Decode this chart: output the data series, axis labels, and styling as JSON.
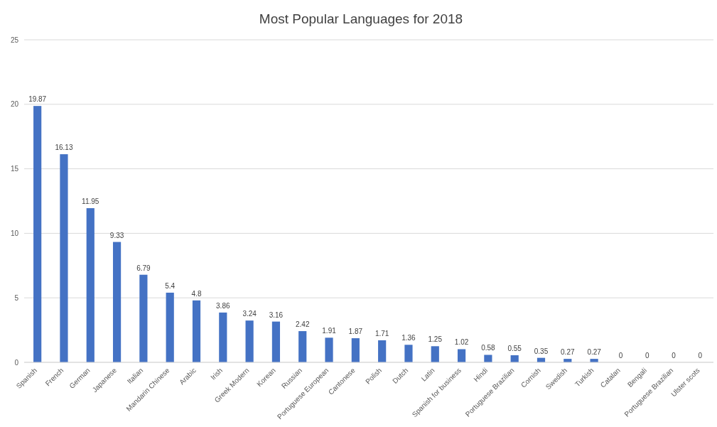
{
  "chart_data": {
    "type": "bar",
    "title": "Most Popular Languages for 2018",
    "categories": [
      "Spanish",
      "French",
      "German",
      "Japanese",
      "Italian",
      "Mandarin Chinese",
      "Arabic",
      "Irish",
      "Greek Modern",
      "Korean",
      "Russian",
      "Portuguese European",
      "Cantonese",
      "Polish",
      "Dutch",
      "Latin",
      "Spanish for business",
      "Hindi",
      "Portuguese Brazilian",
      "Cornish",
      "Swedish",
      "Turkish",
      "Catalan",
      "Bengali",
      "Portuguese Brazilian",
      "Ulster scots"
    ],
    "values": [
      19.87,
      16.13,
      11.95,
      9.33,
      6.79,
      5.4,
      4.8,
      3.86,
      3.24,
      3.16,
      2.42,
      1.91,
      1.87,
      1.71,
      1.36,
      1.25,
      1.02,
      0.58,
      0.55,
      0.35,
      0.27,
      0.27,
      0,
      0,
      0,
      0
    ],
    "color": "#4472c4",
    "ylim": [
      0,
      25
    ],
    "yticks": [
      0,
      5,
      10,
      15,
      20,
      25
    ],
    "grid": "y",
    "data_labels": true
  }
}
